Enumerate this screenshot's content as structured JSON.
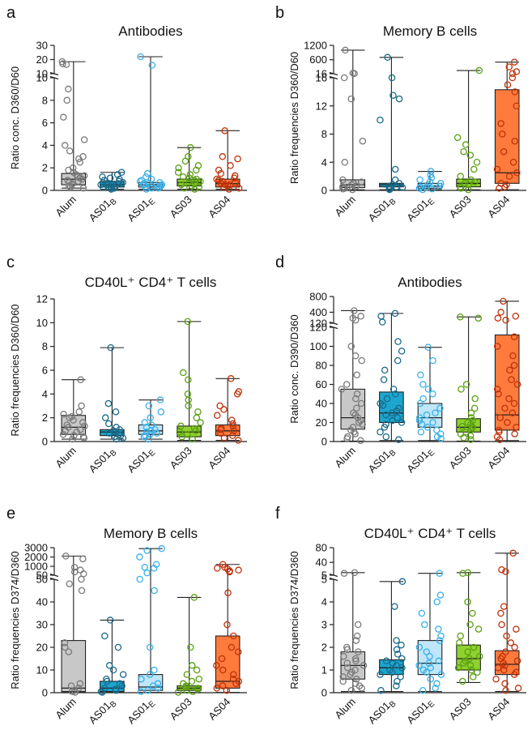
{
  "figure": {
    "panels": [
      "a",
      "b",
      "c",
      "d",
      "e",
      "f"
    ],
    "groups": [
      "Alum",
      "AS01B",
      "AS01E",
      "AS03",
      "AS04"
    ]
  },
  "colors": {
    "Alum": {
      "edge": "#7a7a7a",
      "fill": "#c8c8c8"
    },
    "AS01B": {
      "edge": "#1a6a8a",
      "fill": "#1ba6cf"
    },
    "AS01E": {
      "edge": "#3ab0e8",
      "fill": "#bfe6fa"
    },
    "AS03": {
      "edge": "#5aa012",
      "fill": "#8fd12e"
    },
    "AS04": {
      "edge": "#c0320a",
      "fill": "#ff7a3d"
    }
  },
  "chart_data": [
    {
      "panel": "a",
      "type": "box",
      "title": "Antibodies",
      "ylabel": "Ratio conc. D360/D60",
      "categories": [
        "Alum",
        "AS01B",
        "AS01E",
        "AS03",
        "AS04"
      ],
      "lower_ticks": [
        0,
        2,
        4,
        6,
        8,
        10
      ],
      "upper_ticks": [
        10,
        20,
        30
      ],
      "ylim_lower": [
        0,
        10
      ],
      "ylim_upper": [
        10,
        30
      ],
      "series": [
        {
          "name": "Alum",
          "min": 0.2,
          "q1": 0.5,
          "median": 1.0,
          "q3": 1.5,
          "max": 18.5,
          "points": [
            18.5,
            16.5,
            17,
            9,
            8,
            6.5,
            4.5,
            4,
            3.5,
            3,
            2.8,
            2.5,
            2,
            1.8,
            1.6,
            1.4,
            1.3,
            1.2,
            1.1,
            1,
            0.9,
            0.8,
            0.7,
            0.6,
            0.5,
            0.4,
            0.3,
            0.2
          ]
        },
        {
          "name": "AS01B",
          "min": 0.1,
          "q1": 0.3,
          "median": 0.5,
          "q3": 0.8,
          "max": 1.6,
          "points": [
            1.6,
            1.4,
            1.2,
            1.1,
            1,
            0.9,
            0.8,
            0.7,
            0.7,
            0.6,
            0.6,
            0.5,
            0.5,
            0.4,
            0.4,
            0.3,
            0.3,
            0.2,
            0.2,
            0.1
          ]
        },
        {
          "name": "AS01E",
          "min": 0.1,
          "q1": 0.3,
          "median": 0.5,
          "q3": 0.7,
          "max": 22,
          "points": [
            22,
            16,
            1.5,
            1.2,
            1,
            0.9,
            0.8,
            0.7,
            0.6,
            0.6,
            0.5,
            0.5,
            0.4,
            0.4,
            0.3,
            0.3,
            0.2,
            0.2,
            0.1
          ]
        },
        {
          "name": "AS03",
          "min": 0.1,
          "q1": 0.4,
          "median": 0.7,
          "q3": 1.0,
          "max": 3.8,
          "points": [
            3.8,
            3,
            2.6,
            2.2,
            2,
            1.8,
            1.6,
            1.4,
            1.2,
            1.1,
            1,
            0.9,
            0.8,
            0.7,
            0.6,
            0.5,
            0.4,
            0.3,
            0.2,
            0.1
          ]
        },
        {
          "name": "AS04",
          "min": 0.1,
          "q1": 0.3,
          "median": 0.6,
          "q3": 1.0,
          "max": 5.3,
          "points": [
            5.3,
            3,
            2.8,
            2.2,
            1.8,
            1.5,
            1.3,
            1.1,
            1,
            0.9,
            0.8,
            0.7,
            0.6,
            0.5,
            0.5,
            0.4,
            0.3,
            0.2,
            0.1
          ]
        }
      ]
    },
    {
      "panel": "b",
      "type": "box",
      "title": "Memory B cells",
      "ylabel": "Ratio frequencies D360/D60",
      "categories": [
        "Alum",
        "AS01B",
        "AS01E",
        "AS03",
        "AS04"
      ],
      "lower_ticks": [
        0,
        4,
        8,
        12,
        16
      ],
      "upper_ticks": [
        16,
        600,
        1200
      ],
      "ylim_lower": [
        0,
        16
      ],
      "ylim_upper": [
        16,
        1200
      ],
      "series": [
        {
          "name": "Alum",
          "min": 0.1,
          "q1": 0.4,
          "median": 0.8,
          "q3": 1.5,
          "max": 1000,
          "points": [
            1000,
            40,
            20,
            16,
            13,
            7,
            4,
            1.5,
            1.2,
            1,
            0.8,
            0.6,
            0.5,
            0.4,
            0.3,
            0.2,
            0.1
          ]
        },
        {
          "name": "AS01B",
          "min": 0.1,
          "q1": 0.5,
          "median": 0.8,
          "q3": 1.0,
          "max": 700,
          "points": [
            700,
            16,
            13.5,
            13,
            10,
            3,
            1.5,
            1,
            0.8,
            0.6,
            0.5,
            0.4,
            0.3,
            0.2,
            0.1
          ]
        },
        {
          "name": "AS01E",
          "min": 0.1,
          "q1": 0.3,
          "median": 0.6,
          "q3": 1.0,
          "max": 2.7,
          "points": [
            2.7,
            2.2,
            1.8,
            1.5,
            1.2,
            1,
            0.8,
            0.6,
            0.5,
            0.4,
            0.3,
            0.2,
            0.1
          ]
        },
        {
          "name": "AS03",
          "min": 0.1,
          "q1": 0.5,
          "median": 1.0,
          "q3": 1.6,
          "max": 150,
          "points": [
            150,
            7.5,
            6.5,
            5.5,
            5,
            4,
            3,
            2,
            1.5,
            1.2,
            1,
            0.8,
            0.5,
            0.3,
            0.1
          ]
        },
        {
          "name": "AS04",
          "min": 0.1,
          "q1": 1.0,
          "median": 2.5,
          "q3": 14.3,
          "max": 500,
          "points": [
            500,
            300,
            100,
            20,
            16,
            15,
            14,
            12,
            9.5,
            8,
            7,
            5.5,
            4,
            3,
            2.5,
            2,
            1,
            0.8,
            0.5,
            0.3
          ]
        }
      ]
    },
    {
      "panel": "c",
      "type": "box",
      "title": "CD40L⁺ CD4⁺ T cells",
      "ylabel": "Ratio frequencies D360/D60",
      "categories": [
        "Alum",
        "AS01B",
        "AS01E",
        "AS03",
        "AS04"
      ],
      "lower_ticks": [
        0,
        2,
        4,
        6,
        8,
        10,
        12
      ],
      "upper_ticks": [],
      "ylim_lower": [
        0,
        12
      ],
      "ylim_upper": null,
      "series": [
        {
          "name": "Alum",
          "min": 0.2,
          "q1": 0.6,
          "median": 1.2,
          "q3": 2.2,
          "max": 5.2,
          "points": [
            5.2,
            3,
            2.5,
            2.3,
            2.1,
            2,
            1.8,
            1.6,
            1.4,
            1.3,
            1.2,
            1,
            0.9,
            0.8,
            0.6,
            0.5,
            0.4,
            0.3,
            0.2
          ]
        },
        {
          "name": "AS01B",
          "min": 0.2,
          "q1": 0.5,
          "median": 0.8,
          "q3": 1.0,
          "max": 7.9,
          "points": [
            7.9,
            3.2,
            2.5,
            2,
            1.5,
            1.2,
            1,
            0.9,
            0.8,
            0.7,
            0.6,
            0.5,
            0.4,
            0.3,
            0.2
          ]
        },
        {
          "name": "AS01E",
          "min": 0.2,
          "q1": 0.6,
          "median": 0.9,
          "q3": 1.4,
          "max": 3.5,
          "points": [
            3.5,
            3,
            2.5,
            2,
            1.6,
            1.4,
            1.2,
            1,
            0.9,
            0.8,
            0.7,
            0.6,
            0.5,
            0.4,
            0.2
          ]
        },
        {
          "name": "AS03",
          "min": 0.1,
          "q1": 0.4,
          "median": 0.8,
          "q3": 1.3,
          "max": 10.1,
          "points": [
            10.1,
            5.8,
            5.2,
            4,
            3.5,
            3,
            2.5,
            2,
            1.6,
            1.3,
            1.1,
            0.9,
            0.8,
            0.6,
            0.4,
            0.2
          ]
        },
        {
          "name": "AS04",
          "min": 0.1,
          "q1": 0.5,
          "median": 0.9,
          "q3": 1.4,
          "max": 5.3,
          "points": [
            5.3,
            4.2,
            4,
            3,
            2.7,
            2.2,
            1.8,
            1.5,
            1.3,
            1.1,
            1,
            0.9,
            0.7,
            0.5,
            0.3,
            0.1
          ]
        }
      ]
    },
    {
      "panel": "d",
      "type": "box",
      "title": "Antibodies",
      "ylabel": "Ratio conc. D390/D360",
      "categories": [
        "Alum",
        "AS01B",
        "AS01E",
        "AS03",
        "AS04"
      ],
      "lower_ticks": [
        0,
        20,
        40,
        60,
        80,
        100,
        120
      ],
      "upper_ticks": [
        120,
        400,
        800
      ],
      "ylim_lower": [
        0,
        120
      ],
      "ylim_upper": [
        120,
        800
      ],
      "series": [
        {
          "name": "Alum",
          "min": 0.5,
          "q1": 13,
          "median": 25,
          "q3": 55,
          "max": 440,
          "points": [
            440,
            300,
            250,
            200,
            100,
            90,
            85,
            70,
            60,
            55,
            50,
            45,
            40,
            35,
            30,
            28,
            25,
            22,
            20,
            18,
            15,
            12,
            10,
            8,
            5,
            3,
            1
          ]
        },
        {
          "name": "AS01B",
          "min": 1,
          "q1": 20,
          "median": 30,
          "q3": 52,
          "max": 370,
          "points": [
            370,
            300,
            150,
            105,
            95,
            85,
            75,
            65,
            55,
            50,
            45,
            40,
            38,
            35,
            32,
            30,
            28,
            25,
            22,
            20,
            18,
            15,
            10,
            5,
            2
          ]
        },
        {
          "name": "AS01E",
          "min": 1,
          "q1": 15,
          "median": 25,
          "q3": 40,
          "max": 99,
          "points": [
            99,
            85,
            70,
            60,
            55,
            50,
            45,
            40,
            35,
            30,
            28,
            25,
            22,
            20,
            18,
            15,
            12,
            10,
            8,
            5,
            3
          ]
        },
        {
          "name": "AS03",
          "min": 0.5,
          "q1": 10,
          "median": 15,
          "q3": 24,
          "max": 280,
          "points": [
            280,
            250,
            60,
            55,
            45,
            35,
            30,
            25,
            22,
            20,
            18,
            16,
            15,
            14,
            12,
            10,
            8,
            6,
            4,
            2
          ]
        },
        {
          "name": "AS04",
          "min": 1,
          "q1": 12,
          "median": 28,
          "q3": 112,
          "max": 680,
          "points": [
            680,
            400,
            300,
            250,
            200,
            110,
            100,
            90,
            80,
            75,
            65,
            60,
            55,
            50,
            45,
            40,
            35,
            30,
            25,
            20,
            15,
            12,
            10,
            8,
            5,
            2
          ]
        }
      ]
    },
    {
      "panel": "e",
      "type": "box",
      "title": "Memory B cells",
      "ylabel": "Ratio frequencies D374/D360",
      "categories": [
        "Alum",
        "AS01B",
        "AS01E",
        "AS03",
        "AS04"
      ],
      "lower_ticks": [
        0,
        10,
        20,
        30,
        40,
        50
      ],
      "upper_ticks": [
        50,
        1000,
        2000,
        3000
      ],
      "ylim_lower": [
        0,
        50
      ],
      "ylim_upper": [
        50,
        3000
      ],
      "series": [
        {
          "name": "Alum",
          "min": 0.1,
          "q1": 0.5,
          "median": 2,
          "q3": 23,
          "max": 2100,
          "points": [
            2100,
            1800,
            900,
            600,
            400,
            200,
            50,
            48,
            45,
            22,
            20,
            18,
            4,
            3,
            2,
            1,
            0.5,
            0.2
          ]
        },
        {
          "name": "AS01B",
          "min": 0.1,
          "q1": 0.5,
          "median": 2,
          "q3": 5,
          "max": 32,
          "points": [
            32,
            25,
            20,
            12,
            10,
            8,
            6,
            5,
            4,
            3,
            2,
            1.5,
            1,
            0.5,
            0.2
          ]
        },
        {
          "name": "AS01E",
          "min": 0.1,
          "q1": 1,
          "median": 2.5,
          "q3": 8,
          "max": 2900,
          "points": [
            2900,
            2700,
            2000,
            1200,
            900,
            800,
            300,
            50,
            45,
            20,
            10,
            8,
            6,
            4,
            3,
            2,
            1,
            0.5
          ]
        },
        {
          "name": "AS03",
          "min": 0.1,
          "q1": 1,
          "median": 2,
          "q3": 3,
          "max": 42,
          "points": [
            42,
            20,
            12,
            10,
            8,
            6,
            5,
            4,
            3,
            2.5,
            2,
            1.5,
            1,
            0.5,
            0.2
          ]
        },
        {
          "name": "AS04",
          "min": 0.1,
          "q1": 2,
          "median": 5,
          "q3": 25,
          "max": 1200,
          "points": [
            1200,
            900,
            800,
            700,
            600,
            500,
            400,
            44,
            30,
            25,
            20,
            18,
            15,
            12,
            10,
            8,
            6,
            5,
            4,
            3,
            2,
            1
          ]
        }
      ]
    },
    {
      "panel": "f",
      "type": "box",
      "title": "CD40L⁺ CD4⁺ T cells",
      "ylabel": "Ratio frequencies D374/D360",
      "categories": [
        "Alum",
        "AS01B",
        "AS01E",
        "AS03",
        "AS04"
      ],
      "lower_ticks": [
        0,
        1,
        2,
        3,
        4,
        5
      ],
      "upper_ticks": [
        5,
        40,
        80
      ],
      "ylim_lower": [
        0,
        5
      ],
      "ylim_upper": [
        5,
        80
      ],
      "series": [
        {
          "name": "Alum",
          "min": 0.05,
          "q1": 0.6,
          "median": 1.2,
          "q3": 1.8,
          "max": 12,
          "points": [
            12,
            10,
            3,
            2.5,
            2.3,
            2,
            1.9,
            1.8,
            1.6,
            1.5,
            1.4,
            1.3,
            1.2,
            1.1,
            1,
            0.9,
            0.8,
            0.7,
            0.6,
            0.5,
            0.4,
            0.3,
            0.2,
            0.1
          ]
        },
        {
          "name": "AS01B",
          "min": 0.05,
          "q1": 0.8,
          "median": 1.1,
          "q3": 1.45,
          "max": 4.9,
          "points": [
            4.9,
            3.8,
            2.3,
            2.1,
            1.9,
            1.7,
            1.5,
            1.4,
            1.3,
            1.2,
            1.1,
            1,
            0.9,
            0.8,
            0.7,
            0.5,
            0.3,
            0.1
          ]
        },
        {
          "name": "AS01E",
          "min": 0.05,
          "q1": 0.8,
          "median": 1.3,
          "q3": 2.3,
          "max": 10,
          "points": [
            10,
            4.3,
            4,
            3.5,
            3,
            2.8,
            2.5,
            2.3,
            2,
            1.8,
            1.6,
            1.4,
            1.3,
            1.2,
            1.1,
            1,
            0.9,
            0.8,
            0.6,
            0.4,
            0.2,
            0.1
          ]
        },
        {
          "name": "AS03",
          "min": 0.45,
          "q1": 1.0,
          "median": 1.5,
          "q3": 2.1,
          "max": 12,
          "points": [
            12,
            10,
            4,
            3.5,
            3,
            2.8,
            2.5,
            2.2,
            2,
            1.8,
            1.6,
            1.5,
            1.4,
            1.3,
            1.2,
            1.1,
            1,
            0.9,
            0.7,
            0.5
          ]
        },
        {
          "name": "AS04",
          "min": 0.05,
          "q1": 0.8,
          "median": 1.25,
          "q3": 1.85,
          "max": 65,
          "points": [
            65,
            20,
            15,
            3.8,
            3.5,
            3,
            2.8,
            2.5,
            2.2,
            2,
            1.8,
            1.6,
            1.5,
            1.4,
            1.3,
            1.2,
            1.1,
            1,
            0.9,
            0.8,
            0.6,
            0.4,
            0.2,
            0.1
          ]
        }
      ]
    }
  ]
}
